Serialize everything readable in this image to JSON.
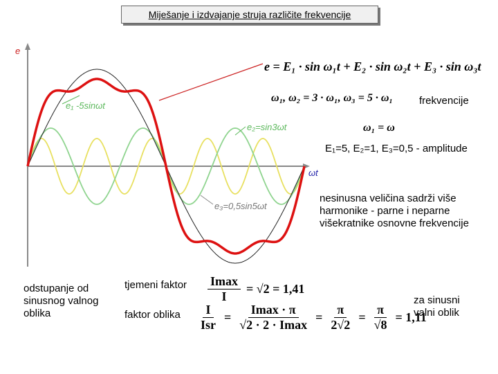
{
  "header": {
    "title": "Miješanje i izdvajanje struja različite frekvencije"
  },
  "chart": {
    "y_label": "e",
    "x_label": "ωt",
    "curve_labels": [
      "e₁ -5sinωt",
      "e₂=sin3ωt",
      "e₃=0,5sin5ωt"
    ]
  },
  "notes": {
    "equation": "e = E₁ · sin ω₁t + E₂ · sin ω₂t + E₃ · sin ω₃t",
    "frequencies": "ω₁,   ω₂ = 3 · ω₁,   ω₃ = 5 · ω₁",
    "frequencies_label": "frekvencije",
    "omega": "ω₁ = ω",
    "amplitudes": "E₁=5,  E₂=1,  E₃=0,5 - amplitude",
    "description": [
      "nesinusna veličina sadrži više",
      "harmonike - parne i neparne",
      "višekratnike osnovne frekvencije"
    ]
  },
  "factors": {
    "deviation": [
      "odstupanje od",
      "sinusnog valnog",
      "oblika"
    ],
    "crest_label": "tjemeni faktor",
    "crest": [
      {
        "num": "Imax",
        "den": "I"
      },
      "= √2 = 1,41"
    ],
    "form_label": "faktor oblika",
    "form": [
      {
        "num": "I",
        "den": "Isr"
      },
      "=",
      {
        "num": "Imax · π",
        "den": "√2 · 2 · Imax"
      },
      "=",
      {
        "num": "π",
        "den": "2√2"
      },
      "=",
      {
        "num": "π",
        "den": "√8"
      },
      "= 1,11"
    ],
    "sinusoid": [
      "za sinusni",
      "valni oblik"
    ]
  }
}
